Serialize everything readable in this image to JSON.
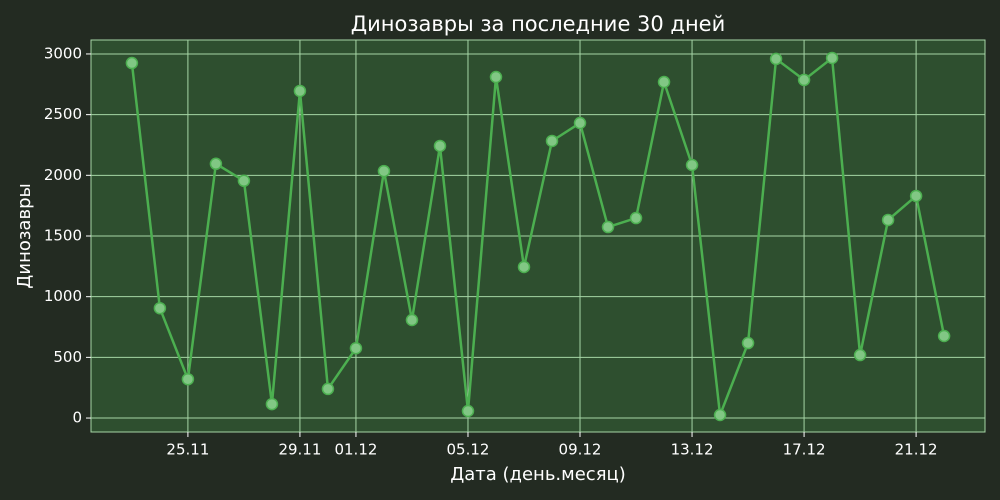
{
  "chart_data": {
    "type": "line",
    "title": "Динозавры за последние 30 дней",
    "xlabel": "Дата (день.месяц)",
    "ylabel": "Динозавры",
    "categories": [
      null,
      null,
      "25.11",
      null,
      null,
      null,
      "29.11",
      null,
      "01.12",
      null,
      null,
      null,
      "05.12",
      null,
      null,
      null,
      "09.12",
      null,
      null,
      null,
      "13.12",
      null,
      null,
      null,
      "17.12",
      null,
      null,
      null,
      "21.12",
      null
    ],
    "series": [
      {
        "name": "Динозавры",
        "color": "#4caf50",
        "marker_color": "#81c784",
        "values": [
          2925,
          905,
          320,
          2095,
          1955,
          115,
          2695,
          240,
          575,
          2035,
          808,
          2242,
          58,
          2810,
          1245,
          2283,
          2431,
          1574,
          1648,
          2769,
          2085,
          25,
          618,
          2959,
          2786,
          2967,
          519,
          1632,
          1830,
          676
        ]
      }
    ],
    "ylim": [
      -115,
      3115
    ],
    "yticks": [
      0,
      500,
      1000,
      1500,
      2000,
      2500,
      3000
    ],
    "grid": true
  }
}
